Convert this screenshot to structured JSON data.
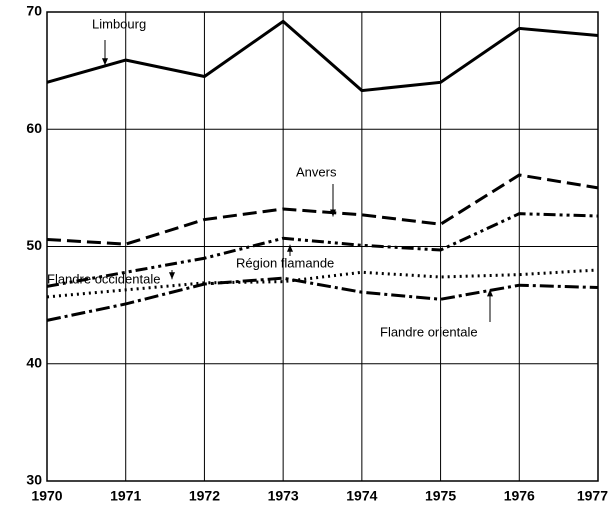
{
  "chart_data": {
    "type": "line",
    "x": [
      1970,
      1971,
      1972,
      1973,
      1974,
      1975,
      1976,
      1977
    ],
    "xlim": [
      1970,
      1977
    ],
    "xticks": [
      1970,
      1971,
      1972,
      1973,
      1974,
      1975,
      1976,
      1977
    ],
    "ylim": [
      30,
      70
    ],
    "yticks": [
      30,
      40,
      50,
      60,
      70
    ],
    "grid": true,
    "series": [
      {
        "name": "Limbourg",
        "color": "#000000",
        "style": "solid",
        "values": [
          64.0,
          65.9,
          64.5,
          69.2,
          63.3,
          64.0,
          68.6,
          68.0
        ]
      },
      {
        "name": "Anvers",
        "color": "#000000",
        "style": "dashed",
        "values": [
          50.6,
          50.2,
          52.3,
          53.2,
          52.7,
          51.9,
          56.1,
          55.0
        ]
      },
      {
        "name": "Région flamande",
        "color": "#000000",
        "style": "dashdotdot",
        "values": [
          46.6,
          47.8,
          49.0,
          50.7,
          50.1,
          49.7,
          52.8,
          52.6
        ]
      },
      {
        "name": "Flandre occidentale",
        "color": "#000000",
        "style": "dotted",
        "values": [
          45.7,
          46.3,
          46.9,
          47.0,
          47.8,
          47.4,
          47.6,
          48.0
        ]
      },
      {
        "name": "Flandre orientale",
        "color": "#000000",
        "style": "dashdot",
        "values": [
          43.7,
          45.1,
          46.8,
          47.3,
          46.1,
          45.5,
          46.7,
          46.5
        ]
      }
    ]
  }
}
